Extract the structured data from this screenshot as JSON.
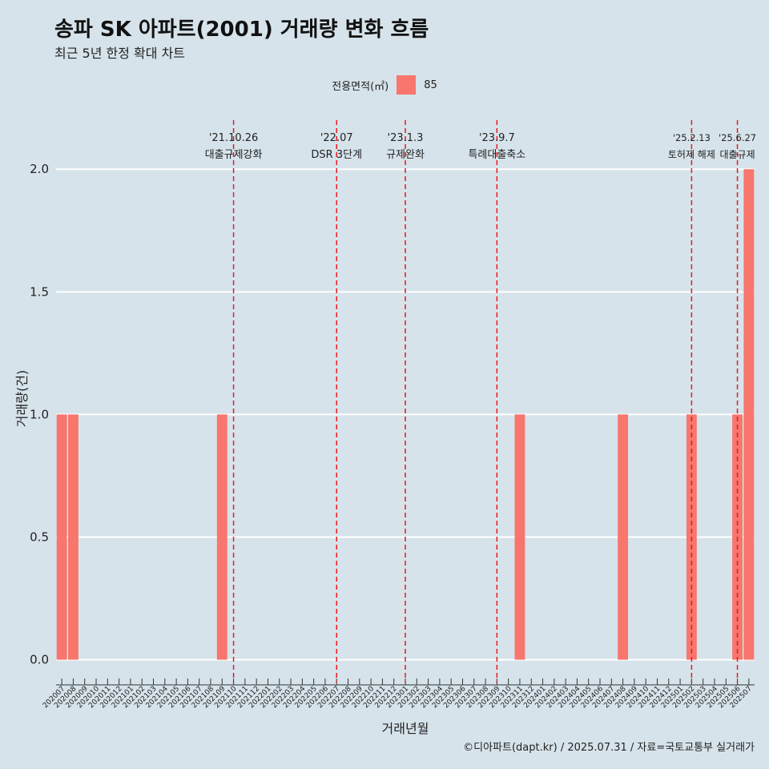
{
  "title": "송파 SK 아파트(2001) 거래량 변화 흐름",
  "subtitle": "최근 5년 한정 확대 차트",
  "caption": "©디아파트(dapt.kr) / 2025.07.31 / 자료=국토교통부 실거래가",
  "legend": {
    "title": "전용면적(㎡)",
    "items": [
      {
        "label": "85",
        "color": "#f8766d"
      }
    ]
  },
  "chart_data": {
    "type": "bar",
    "xlabel": "거래년월",
    "ylabel": "거래량(건)",
    "ylim": [
      -0.07,
      2.2
    ],
    "yticks": [
      0.0,
      0.5,
      1.0,
      1.5,
      2.0
    ],
    "ytick_labels": [
      "0.0",
      "0.5",
      "1.0",
      "1.5",
      "2.0"
    ],
    "grid": true,
    "legend_position": "top",
    "bar_color": "#f8766d",
    "categories": [
      "202007",
      "202008",
      "202009",
      "202010",
      "202011",
      "202012",
      "202101",
      "202102",
      "202103",
      "202104",
      "202105",
      "202106",
      "202107",
      "202108",
      "202109",
      "202110",
      "202111",
      "202112",
      "202201",
      "202202",
      "202203",
      "202204",
      "202205",
      "202206",
      "202207",
      "202208",
      "202209",
      "202210",
      "202211",
      "202212",
      "202301",
      "202302",
      "202303",
      "202304",
      "202305",
      "202306",
      "202307",
      "202308",
      "202309",
      "202310",
      "202311",
      "202312",
      "202401",
      "202402",
      "202403",
      "202404",
      "202405",
      "202406",
      "202407",
      "202408",
      "202409",
      "202410",
      "202411",
      "202412",
      "202501",
      "202502",
      "202503",
      "202504",
      "202505",
      "202506",
      "202507"
    ],
    "series": [
      {
        "values": [
          1,
          1,
          0,
          0,
          0,
          0,
          0,
          0,
          0,
          0,
          0,
          0,
          0,
          0,
          1,
          0,
          0,
          0,
          0,
          0,
          0,
          0,
          0,
          0,
          0,
          0,
          0,
          0,
          0,
          0,
          0,
          0,
          0,
          0,
          0,
          0,
          0,
          0,
          0,
          0,
          1,
          0,
          0,
          0,
          0,
          0,
          0,
          0,
          0,
          1,
          0,
          0,
          0,
          0,
          0,
          1,
          0,
          0,
          0,
          1,
          2
        ]
      }
    ],
    "annotations": [
      {
        "x": "202110",
        "date": "'21.10.26",
        "label": "대출규제강화"
      },
      {
        "x": "202207",
        "date": "'22.07",
        "label": "DSR 3단계"
      },
      {
        "x": "202301",
        "date": "'23.1.3",
        "label": "규제완화"
      },
      {
        "x": "202309",
        "date": "'23.9.7",
        "label": "특례대출축소"
      },
      {
        "x": "202502",
        "date": "'25.2.13",
        "label": "토허제 해제"
      },
      {
        "x": "202506",
        "date": "'25.6.27",
        "label": "대출규제"
      }
    ]
  }
}
